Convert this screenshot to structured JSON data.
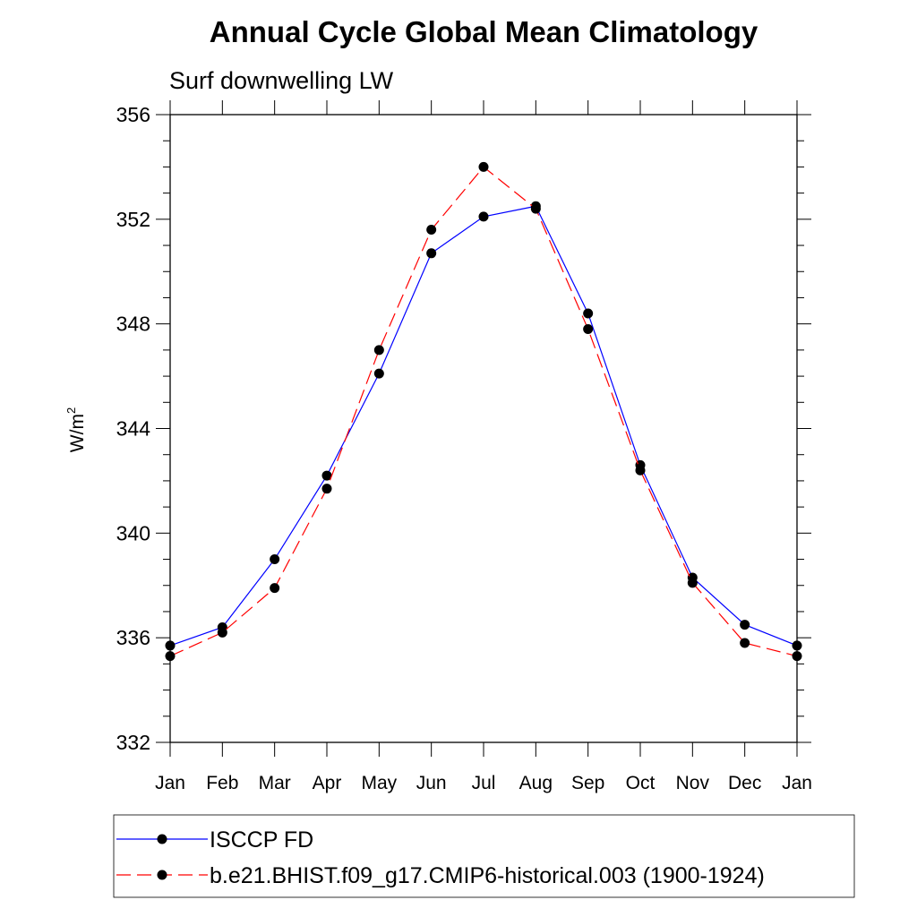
{
  "chart_data": {
    "type": "line",
    "title": "Annual Cycle Global Mean Climatology",
    "subtitle": "Surf downwelling LW",
    "ylabel": "W/m",
    "ylabel_superscript": "2",
    "xlabel": "",
    "categories": [
      "Jan",
      "Feb",
      "Mar",
      "Apr",
      "May",
      "Jun",
      "Jul",
      "Aug",
      "Sep",
      "Oct",
      "Nov",
      "Dec",
      "Jan"
    ],
    "ylim": [
      332,
      356
    ],
    "yticks": [
      "332",
      "336",
      "340",
      "344",
      "348",
      "352",
      "356"
    ],
    "grid": false,
    "legend_position": "bottom",
    "series": [
      {
        "name": "ISCCP FD",
        "color": "#0000ff",
        "line_style": "solid",
        "marker": "filled-circle",
        "values": [
          335.7,
          336.4,
          339.0,
          342.2,
          346.1,
          350.7,
          352.1,
          352.5,
          348.4,
          342.6,
          338.3,
          336.5,
          335.7
        ]
      },
      {
        "name": "b.e21.BHIST.f09_g17.CMIP6-historical.003 (1900-1924)",
        "color": "#ff0000",
        "line_style": "dashed",
        "marker": "filled-circle",
        "values": [
          335.3,
          336.2,
          337.9,
          341.7,
          347.0,
          351.6,
          354.0,
          352.4,
          347.8,
          342.4,
          338.1,
          335.8,
          335.3
        ]
      }
    ]
  }
}
